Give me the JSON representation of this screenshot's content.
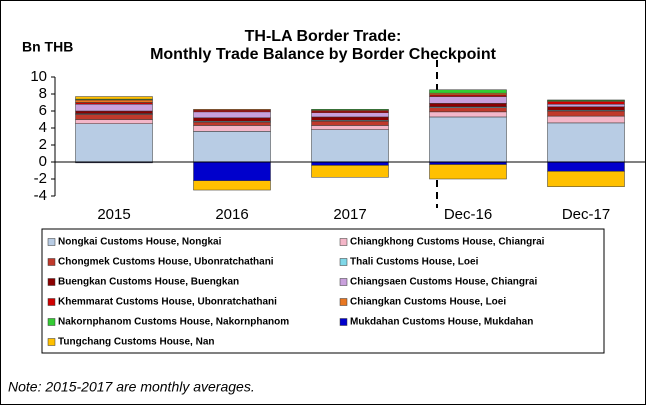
{
  "chart_data": {
    "type": "stacked_bar",
    "title": "TH-LA Border Trade:",
    "subtitle": "Monthly Trade Balance by Border Checkpoint",
    "y_label": "Bn THB",
    "note": "Note: 2015-2017 are monthly averages.",
    "categories": [
      "2015",
      "2016",
      "2017",
      "Dec-16",
      "Dec-17"
    ],
    "ylim": [
      -4,
      10
    ],
    "yticks": [
      -4,
      -2,
      0,
      2,
      4,
      6,
      8,
      10
    ],
    "series": [
      {
        "name": "Nongkai Customs House, Nongkai",
        "color": "#b8cce4",
        "values": [
          4.5,
          3.6,
          3.8,
          5.3,
          4.6
        ]
      },
      {
        "name": "Chiangkhong Customs House, Chiangrai",
        "color": "#f4b6c8",
        "values": [
          0.5,
          0.7,
          0.5,
          0.6,
          0.8
        ]
      },
      {
        "name": "Chongmek Customs House, Ubonratchathani",
        "color": "#c0392b",
        "values": [
          0.6,
          0.4,
          0.5,
          0.5,
          0.6
        ]
      },
      {
        "name": "Thali Customs House, Loei",
        "color": "#7fd8e8",
        "values": [
          0.1,
          0.1,
          0.1,
          0.1,
          0.1
        ]
      },
      {
        "name": "Buengkan Customs House, Buengkan",
        "color": "#8b0000",
        "values": [
          0.3,
          0.4,
          0.4,
          0.4,
          0.4
        ]
      },
      {
        "name": "Chiangsaen Customs House, Chiangrai",
        "color": "#c9a0dc",
        "values": [
          0.8,
          0.7,
          0.5,
          0.8,
          0.3
        ]
      },
      {
        "name": "Khemmarat Customs House, Ubonratchathani",
        "color": "#d00000",
        "values": [
          0.2,
          0.2,
          0.2,
          0.2,
          0.3
        ]
      },
      {
        "name": "Chiangkan Customs House, Loei",
        "color": "#e87722",
        "values": [
          0.3,
          0.1,
          0.1,
          0.2,
          0.1
        ]
      },
      {
        "name": "Nakornphanom Customs House, Nakornphanom",
        "color": "#33cc33",
        "values": [
          0.1,
          0.0,
          0.1,
          0.4,
          0.1
        ]
      },
      {
        "name": "Mukdahan Customs House, Mukdahan",
        "color": "#0000cc",
        "values": [
          -0.1,
          -2.2,
          -0.4,
          -0.3,
          -1.1
        ]
      },
      {
        "name": "Tungchang Customs House, Nan",
        "color": "#ffc000",
        "values": [
          0.3,
          -1.1,
          -1.4,
          -1.7,
          -1.8
        ]
      }
    ]
  }
}
